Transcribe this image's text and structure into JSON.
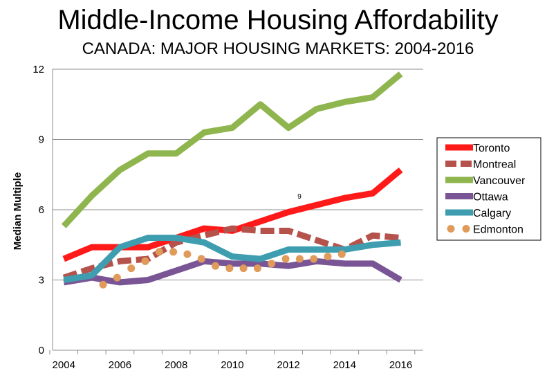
{
  "chart_data": {
    "type": "line",
    "title": "Middle-Income Housing Affordability",
    "subtitle": "CANADA: MAJOR HOUSING MARKETS: 2004-2016",
    "ylabel": "Median Multiple",
    "xlabel": "",
    "ylim": [
      0,
      12
    ],
    "yticks": [
      0,
      3,
      6,
      9,
      12
    ],
    "xticks": [
      "2004",
      "2006",
      "2008",
      "2010",
      "2012",
      "2014",
      "2016"
    ],
    "x": [
      2004,
      2005,
      2006,
      2007,
      2008,
      2009,
      2010,
      2011,
      2012,
      2013,
      2014,
      2015,
      2016
    ],
    "grid": "horizontal",
    "legend_position": "right",
    "annotation": "9",
    "series": [
      {
        "name": "Toronto",
        "color": "#ff1a1a",
        "style": "solid",
        "values": [
          3.9,
          4.4,
          4.4,
          4.4,
          4.8,
          5.2,
          5.1,
          5.5,
          5.9,
          6.2,
          6.5,
          6.7,
          7.7
        ]
      },
      {
        "name": "Montreal",
        "color": "#b5524c",
        "style": "dashed",
        "values": [
          3.1,
          3.5,
          3.8,
          3.9,
          4.6,
          4.9,
          5.2,
          5.1,
          5.1,
          4.7,
          4.3,
          4.9,
          4.8
        ]
      },
      {
        "name": "Vancouver",
        "color": "#8fb54e",
        "style": "solid",
        "values": [
          5.3,
          6.6,
          7.7,
          8.4,
          8.4,
          9.3,
          9.5,
          10.5,
          9.5,
          10.3,
          10.6,
          10.8,
          11.8
        ]
      },
      {
        "name": "Ottawa",
        "color": "#7a5596",
        "style": "solid",
        "values": [
          2.9,
          3.1,
          2.9,
          3.0,
          3.4,
          3.8,
          3.7,
          3.7,
          3.6,
          3.8,
          3.7,
          3.7,
          3.0
        ]
      },
      {
        "name": "Calgary",
        "color": "#3e9eaf",
        "style": "solid",
        "values": [
          3.0,
          3.2,
          4.4,
          4.8,
          4.8,
          4.6,
          4.0,
          3.9,
          4.3,
          4.3,
          4.3,
          4.5,
          4.6
        ]
      },
      {
        "name": "Edmonton",
        "color": "#e09a5a",
        "style": "dotted",
        "values": [
          null,
          2.8,
          3.1,
          3.5,
          3.8,
          4.2,
          4.2,
          4.1,
          3.9,
          3.6,
          3.5,
          3.5,
          3.5,
          3.7,
          3.9,
          3.9,
          3.9,
          4.0,
          4.1
        ],
        "x": [
          2004.9,
          2005.4,
          2005.9,
          2006.4,
          2006.9,
          2007.4,
          2007.9,
          2008.4,
          2008.9,
          2009.4,
          2009.9,
          2010.4,
          2010.9,
          2011.4,
          2011.9,
          2012.4,
          2012.9,
          2013.4,
          2013.9
        ]
      }
    ]
  }
}
